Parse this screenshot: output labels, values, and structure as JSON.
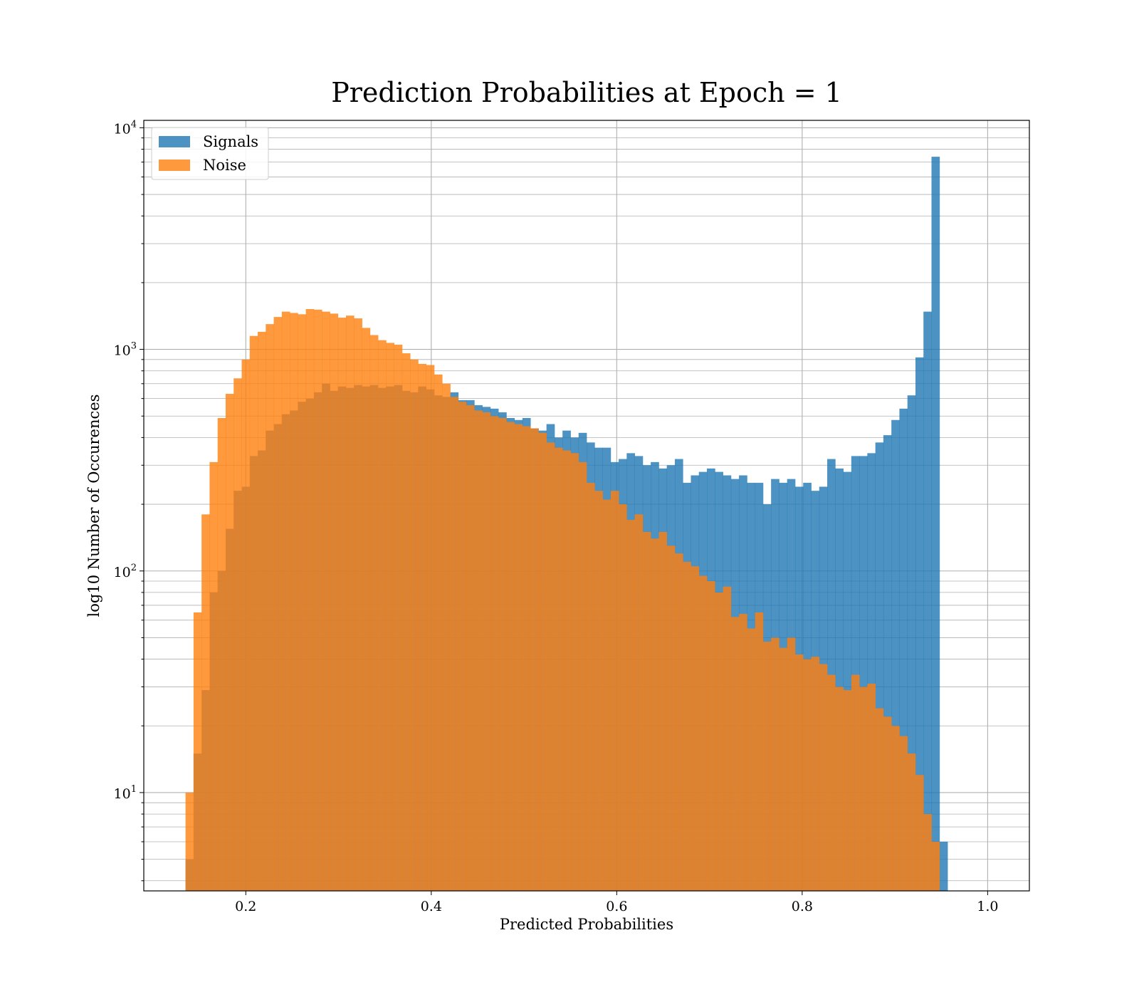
{
  "chart_data": {
    "type": "histogram",
    "title": "Prediction Probabilities at Epoch = 1",
    "xlabel": "Predicted Probabilities",
    "ylabel": "log10 Number of Occurences",
    "xlim": [
      0.09,
      1.045
    ],
    "ylim": [
      3.6,
      10800
    ],
    "yscale": "log",
    "grid": true,
    "grid_minor": true,
    "legend_position": "top-left",
    "x_ticks": [
      {
        "value": 0.2,
        "label": "0.2"
      },
      {
        "value": 0.4,
        "label": "0.4"
      },
      {
        "value": 0.6,
        "label": "0.6"
      },
      {
        "value": 0.8,
        "label": "0.8"
      },
      {
        "value": 1.0,
        "label": "1.0"
      }
    ],
    "y_ticks": [
      {
        "value": 10,
        "base": "10",
        "exp": "1"
      },
      {
        "value": 100,
        "base": "10",
        "exp": "2"
      },
      {
        "value": 1000,
        "base": "10",
        "exp": "3"
      },
      {
        "value": 10000,
        "base": "10",
        "exp": "4"
      }
    ],
    "bin_start": 0.135,
    "bin_width": 0.00865,
    "series": [
      {
        "name": "Signals",
        "color": "#1f77b4",
        "opacity": 0.8,
        "values": [
          5,
          15,
          29,
          80,
          100,
          155,
          230,
          240,
          330,
          350,
          430,
          460,
          510,
          530,
          580,
          600,
          640,
          700,
          650,
          680,
          670,
          690,
          680,
          690,
          670,
          680,
          690,
          650,
          640,
          680,
          660,
          620,
          610,
          640,
          590,
          590,
          560,
          550,
          540,
          520,
          490,
          480,
          490,
          440,
          430,
          460,
          400,
          430,
          400,
          420,
          380,
          360,
          360,
          310,
          320,
          340,
          330,
          300,
          310,
          290,
          300,
          320,
          250,
          270,
          280,
          290,
          280,
          270,
          260,
          270,
          250,
          250,
          200,
          260,
          250,
          260,
          240,
          250,
          230,
          240,
          320,
          290,
          280,
          330,
          330,
          340,
          380,
          410,
          480,
          540,
          620,
          920,
          1480,
          7400,
          6
        ]
      },
      {
        "name": "Noise",
        "color": "#ff7f0e",
        "opacity": 0.8,
        "values": [
          10,
          65,
          180,
          310,
          490,
          630,
          740,
          900,
          1150,
          1200,
          1300,
          1400,
          1480,
          1460,
          1440,
          1520,
          1510,
          1480,
          1450,
          1390,
          1420,
          1380,
          1250,
          1160,
          1100,
          1070,
          1050,
          960,
          900,
          860,
          850,
          770,
          700,
          610,
          580,
          560,
          530,
          520,
          500,
          490,
          470,
          460,
          450,
          440,
          420,
          380,
          360,
          350,
          340,
          310,
          250,
          230,
          210,
          230,
          200,
          170,
          180,
          150,
          140,
          150,
          130,
          120,
          110,
          105,
          95,
          90,
          80,
          85,
          62,
          64,
          55,
          65,
          48,
          50,
          45,
          50,
          42,
          40,
          41,
          38,
          34,
          30,
          29,
          34,
          30,
          31,
          24,
          22,
          20,
          18,
          15,
          12,
          8,
          6,
          0
        ]
      }
    ]
  }
}
